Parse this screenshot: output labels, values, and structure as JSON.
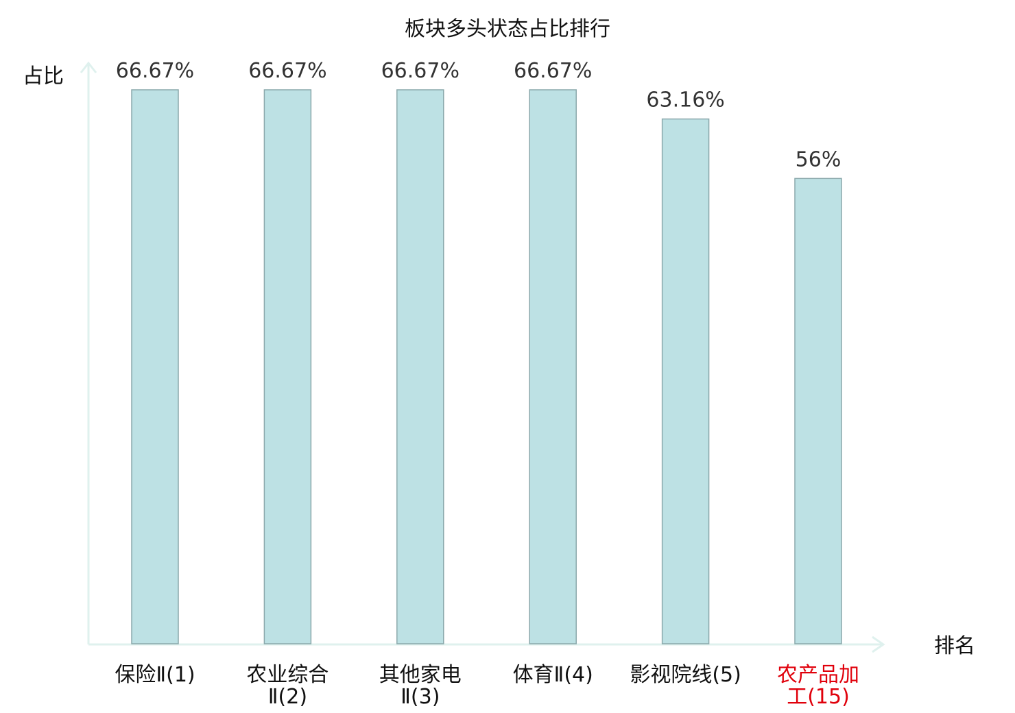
{
  "chart_data": {
    "type": "bar",
    "title": "板块多头状态占比排行",
    "xlabel": "排名",
    "ylabel": "占比",
    "categories": [
      {
        "line1": "保险Ⅱ(1)",
        "line2": ""
      },
      {
        "line1": "农业综合",
        "line2": "Ⅱ(2)"
      },
      {
        "line1": "其他家电",
        "line2": "Ⅱ(3)"
      },
      {
        "line1": "体育Ⅱ(4)",
        "line2": ""
      },
      {
        "line1": "影视院线(5)",
        "line2": ""
      },
      {
        "line1": "农产品加",
        "line2": "工(15)"
      }
    ],
    "values": [
      66.67,
      66.67,
      66.67,
      66.67,
      63.16,
      56
    ],
    "value_labels": [
      "66.67%",
      "66.67%",
      "66.67%",
      "66.67%",
      "63.16%",
      "56%"
    ],
    "highlight_index": 5,
    "ylim": [
      0,
      66.67
    ],
    "grid": false,
    "colors": {
      "bar_fill": "#bde1e4",
      "bar_stroke": "#8aa8ab",
      "axis": "#dff1ee",
      "highlight_text": "#e0000b"
    }
  }
}
